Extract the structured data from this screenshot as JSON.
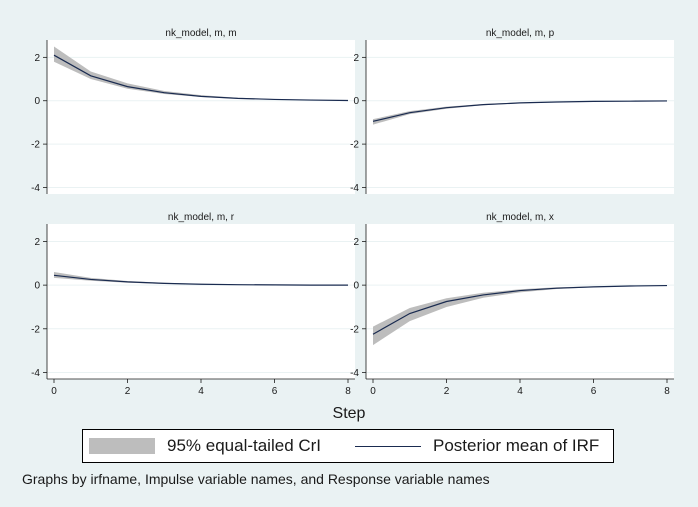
{
  "chart_data": {
    "type": "line",
    "xlabel": "Step",
    "note": "Graphs by irfname, Impulse variable names, and Response variable names",
    "legend": {
      "band": "95% equal-tailed CrI",
      "mean": "Posterior mean of IRF",
      "placement": "bottom"
    },
    "xlim": [
      0,
      8
    ],
    "ylim": [
      -4.3,
      2.8
    ],
    "xticks": [
      0,
      2,
      4,
      6,
      8
    ],
    "yticks": [
      -4,
      -2,
      0,
      2
    ],
    "grid": true,
    "colors": {
      "band": "#bdbdbd",
      "mean": "#1a2b50",
      "background": "#eaf2f3",
      "panel": "#ffffff"
    },
    "panels": [
      {
        "title": "nk_model, m, m",
        "x": [
          0,
          1,
          2,
          3,
          4,
          5,
          6,
          7,
          8
        ],
        "mean": [
          2.1,
          1.15,
          0.65,
          0.37,
          0.2,
          0.11,
          0.06,
          0.03,
          0.01
        ],
        "lower": [
          1.8,
          1.0,
          0.55,
          0.31,
          0.17,
          0.09,
          0.05,
          0.02,
          0.0
        ],
        "upper": [
          2.5,
          1.35,
          0.8,
          0.45,
          0.26,
          0.14,
          0.08,
          0.04,
          0.02
        ]
      },
      {
        "title": "nk_model, m, p",
        "x": [
          0,
          1,
          2,
          3,
          4,
          5,
          6,
          7,
          8
        ],
        "mean": [
          -0.95,
          -0.55,
          -0.32,
          -0.18,
          -0.1,
          -0.06,
          -0.03,
          -0.02,
          -0.01
        ],
        "lower": [
          -1.1,
          -0.62,
          -0.37,
          -0.21,
          -0.12,
          -0.07,
          -0.04,
          -0.02,
          -0.01
        ],
        "upper": [
          -0.85,
          -0.48,
          -0.27,
          -0.15,
          -0.08,
          -0.05,
          -0.02,
          -0.01,
          0.0
        ]
      },
      {
        "title": "nk_model, m, r",
        "x": [
          0,
          1,
          2,
          3,
          4,
          5,
          6,
          7,
          8
        ],
        "mean": [
          0.45,
          0.26,
          0.15,
          0.08,
          0.04,
          0.02,
          0.01,
          0.0,
          0.0
        ],
        "lower": [
          0.33,
          0.2,
          0.11,
          0.06,
          0.03,
          0.01,
          0.0,
          0.0,
          0.0
        ],
        "upper": [
          0.6,
          0.33,
          0.19,
          0.11,
          0.06,
          0.03,
          0.02,
          0.01,
          0.0
        ]
      },
      {
        "title": "nk_model, m, x",
        "x": [
          0,
          1,
          2,
          3,
          4,
          5,
          6,
          7,
          8
        ],
        "mean": [
          -2.25,
          -1.3,
          -0.75,
          -0.45,
          -0.25,
          -0.14,
          -0.08,
          -0.04,
          -0.02
        ],
        "lower": [
          -2.75,
          -1.65,
          -1.0,
          -0.58,
          -0.33,
          -0.18,
          -0.1,
          -0.05,
          -0.03
        ],
        "upper": [
          -1.9,
          -1.05,
          -0.6,
          -0.35,
          -0.19,
          -0.1,
          -0.06,
          -0.03,
          -0.01
        ]
      }
    ]
  }
}
